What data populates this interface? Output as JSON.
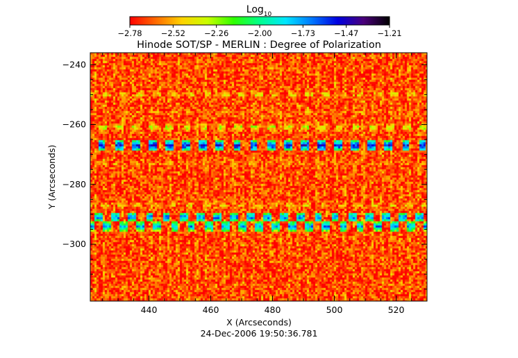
{
  "colorbar": {
    "label": "Log",
    "label_sub": "10",
    "ticks": [
      "-2.78",
      "-2.52",
      "-2.26",
      "-2.00",
      "-1.73",
      "-1.47",
      "-1.21"
    ],
    "range": [
      -2.78,
      -1.21
    ],
    "colormap": [
      "#ff0000",
      "#ff6a00",
      "#ffd200",
      "#c8ff00",
      "#2eff00",
      "#00ff8c",
      "#00e6ff",
      "#0078ff",
      "#0000e0",
      "#4a007a",
      "#000000"
    ]
  },
  "chart_data": {
    "type": "heatmap",
    "title": "Hinode SOT/SP - MERLIN : Degree of Polarization",
    "xlabel": "X (Arcseconds)",
    "ylabel": "Y (Arcseconds)",
    "xlim": [
      421,
      530
    ],
    "ylim": [
      -319,
      -236
    ],
    "xticks": [
      440,
      460,
      480,
      500,
      520
    ],
    "yticks": [
      -240,
      -260,
      -280,
      -300
    ],
    "xtick_labels": [
      "440",
      "460",
      "480",
      "500",
      "520"
    ],
    "ytick_labels": [
      "−240",
      "−260",
      "−280",
      "−300"
    ],
    "value_unit": "Log10 degree of polarization",
    "background_level": -2.7,
    "bands": [
      {
        "y": -267,
        "peak": -1.35
      },
      {
        "y": -291,
        "peak": -1.5
      },
      {
        "y": -294,
        "peak": -1.55
      },
      {
        "y": -261,
        "peak": -2.1
      },
      {
        "y": -250,
        "peak": -2.2
      },
      {
        "y": -287,
        "peak": -2.25
      },
      {
        "y": -273,
        "peak": -2.35
      },
      {
        "y": -256,
        "peak": -2.35
      }
    ]
  },
  "footer": {
    "timestamp": "24-Dec-2006 19:50:36.781"
  }
}
